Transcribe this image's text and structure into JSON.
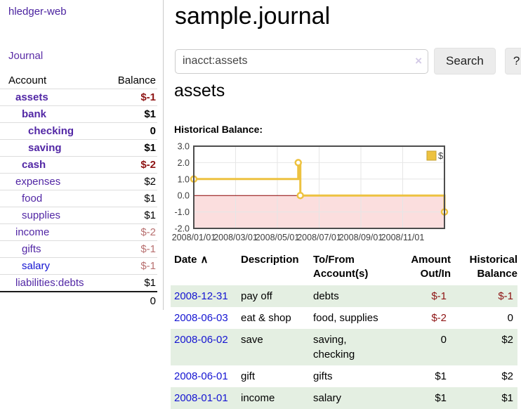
{
  "colors": {
    "link_purple": "#5227a5",
    "link_blue": "#1414d2",
    "negative_strong": "#8e1414",
    "negative_soft": "#b87070",
    "row_green": "#e4efe2",
    "series_gold": "#edc240",
    "zero_line_red": "#8b0000",
    "negative_region_pink": "#fbdede",
    "grid_gray": "#e6e6e6",
    "plot_border": "#4d4d4d"
  },
  "sidebar": {
    "app_title": "hledger-web",
    "journal_label": "Journal",
    "accounts_header": {
      "account": "Account",
      "balance": "Balance"
    },
    "accounts": [
      {
        "label": "assets",
        "level": 0,
        "bold": true,
        "link_color": "purple",
        "balance": "$-1",
        "balance_tone": "neg-strong"
      },
      {
        "label": "bank",
        "level": 1,
        "bold": true,
        "link_color": "purple",
        "balance": "$1",
        "balance_tone": "pos"
      },
      {
        "label": "checking",
        "level": 2,
        "bold": true,
        "link_color": "purple",
        "balance": "0",
        "balance_tone": "pos"
      },
      {
        "label": "saving",
        "level": 2,
        "bold": true,
        "link_color": "purple",
        "balance": "$1",
        "balance_tone": "pos"
      },
      {
        "label": "cash",
        "level": 1,
        "bold": true,
        "link_color": "purple",
        "balance": "$-2",
        "balance_tone": "neg-strong"
      },
      {
        "label": "expenses",
        "level": 0,
        "bold": false,
        "link_color": "purple",
        "balance": "$2",
        "balance_tone": "pos"
      },
      {
        "label": "food",
        "level": 1,
        "bold": false,
        "link_color": "purple",
        "balance": "$1",
        "balance_tone": "pos"
      },
      {
        "label": "supplies",
        "level": 1,
        "bold": false,
        "link_color": "purple",
        "balance": "$1",
        "balance_tone": "pos"
      },
      {
        "label": "income",
        "level": 0,
        "bold": false,
        "link_color": "purple",
        "balance": "$-2",
        "balance_tone": "neg-soft"
      },
      {
        "label": "gifts",
        "level": 1,
        "bold": false,
        "link_color": "purple",
        "balance": "$-1",
        "balance_tone": "neg-soft"
      },
      {
        "label": "salary",
        "level": 1,
        "bold": false,
        "link_color": "blue",
        "balance": "$-1",
        "balance_tone": "neg-soft"
      },
      {
        "label": "liabilities:debts",
        "level": 0,
        "bold": false,
        "link_color": "purple",
        "balance": "$1",
        "balance_tone": "pos"
      }
    ],
    "total": "0"
  },
  "header": {
    "title": "sample.journal"
  },
  "search": {
    "value": "inacct:assets",
    "clear_icon": "×",
    "button_label": "Search",
    "help_label": "?"
  },
  "main": {
    "account_heading": "assets",
    "chart_label": "Historical Balance:"
  },
  "chart_data": {
    "type": "line",
    "title": "Historical Balance",
    "steps": true,
    "series": [
      {
        "name": "$",
        "color": "#edc240",
        "points": [
          {
            "date": "2008-01-01",
            "month": 0,
            "y": 1
          },
          {
            "date": "2008-06-01",
            "month": 5,
            "y": 2
          },
          {
            "date": "2008-06-03",
            "month": 5.1,
            "y": 0
          },
          {
            "date": "2008-12-31",
            "month": 12,
            "y": -1
          }
        ]
      }
    ],
    "x_ticks": [
      {
        "month": 0,
        "label": "2008/01/01"
      },
      {
        "month": 2,
        "label": "2008/03/01"
      },
      {
        "month": 4,
        "label": "2008/05/01"
      },
      {
        "month": 6,
        "label": "2008/07/01"
      },
      {
        "month": 8,
        "label": "2008/09/01"
      },
      {
        "month": 10,
        "label": "2008/11/01"
      }
    ],
    "y_ticks": [
      {
        "v": 3,
        "label": "3.0"
      },
      {
        "v": 2,
        "label": "2.0"
      },
      {
        "v": 1,
        "label": "1.0"
      },
      {
        "v": 0,
        "label": "0.0"
      },
      {
        "v": -1,
        "label": "-1.0"
      },
      {
        "v": -2,
        "label": "-2.0"
      }
    ],
    "ylim": [
      -2,
      3
    ],
    "xlim_months": [
      0,
      12
    ],
    "legend": {
      "position": "top-right",
      "label": "$"
    },
    "grid": true
  },
  "register": {
    "columns": {
      "date": "Date",
      "description": "Description",
      "tofrom": "To/From Account(s)",
      "amount": "Amount Out/In",
      "balance": "Historical Balance"
    },
    "sort_icon": "∧",
    "rows": [
      {
        "date": "2008-12-31",
        "description": "pay off",
        "accounts": "debts",
        "amount": "$-1",
        "amount_tone": "neg",
        "balance": "$-1",
        "balance_tone": "neg",
        "shaded": true
      },
      {
        "date": "2008-06-03",
        "description": "eat & shop",
        "accounts": "food, supplies",
        "amount": "$-2",
        "amount_tone": "neg",
        "balance": "0",
        "balance_tone": "pos",
        "shaded": false
      },
      {
        "date": "2008-06-02",
        "description": "save",
        "accounts": "saving, checking",
        "amount": "0",
        "amount_tone": "pos",
        "balance": "$2",
        "balance_tone": "pos",
        "shaded": true
      },
      {
        "date": "2008-06-01",
        "description": "gift",
        "accounts": "gifts",
        "amount": "$1",
        "amount_tone": "pos",
        "balance": "$2",
        "balance_tone": "pos",
        "shaded": false
      },
      {
        "date": "2008-01-01",
        "description": "income",
        "accounts": "salary",
        "amount": "$1",
        "amount_tone": "pos",
        "balance": "$1",
        "balance_tone": "pos",
        "shaded": true
      }
    ]
  }
}
